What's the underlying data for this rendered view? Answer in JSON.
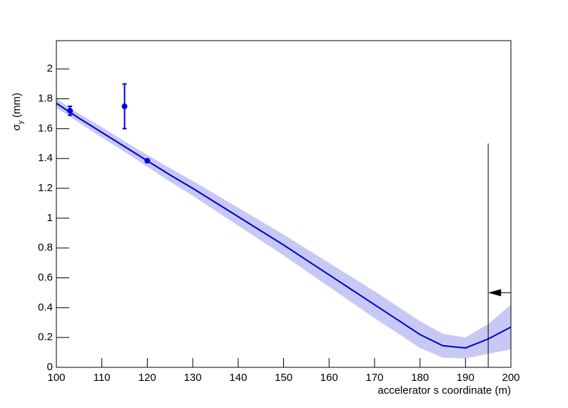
{
  "chart_data": {
    "type": "line",
    "ylabel": "σ",
    "ylabel_sub": "y",
    "ylabel_unit": "(mm)",
    "xlabel": "accelerator s coordinate (m)",
    "xlim": [
      100,
      200
    ],
    "xticks": [
      100,
      110,
      120,
      130,
      140,
      150,
      160,
      170,
      180,
      190,
      200
    ],
    "ylim": [
      0,
      2.19
    ],
    "yticks": [
      0,
      0.2,
      0.4,
      0.6,
      0.8,
      1,
      1.2,
      1.4,
      1.6,
      1.8,
      2
    ],
    "x": [
      100,
      105,
      110,
      115,
      120,
      125,
      130,
      135,
      140,
      145,
      150,
      155,
      160,
      165,
      170,
      175,
      180,
      185,
      190,
      195,
      200
    ],
    "series": [
      {
        "color": "#0000cc",
        "values": [
          1.77,
          1.67,
          1.575,
          1.48,
          1.385,
          1.29,
          1.2,
          1.105,
          1.01,
          0.915,
          0.82,
          0.72,
          0.62,
          0.52,
          0.42,
          0.32,
          0.22,
          0.145,
          0.13,
          0.19,
          0.27
        ]
      }
    ],
    "band": {
      "color": "#c8c8f5",
      "lower": [
        1.74,
        1.64,
        1.54,
        1.445,
        1.345,
        1.245,
        1.15,
        1.05,
        0.95,
        0.85,
        0.75,
        0.645,
        0.54,
        0.435,
        0.33,
        0.23,
        0.13,
        0.065,
        0.06,
        0.09,
        0.12
      ],
      "upper": [
        1.8,
        1.7,
        1.61,
        1.515,
        1.425,
        1.335,
        1.25,
        1.16,
        1.07,
        0.98,
        0.89,
        0.795,
        0.7,
        0.605,
        0.51,
        0.41,
        0.31,
        0.225,
        0.2,
        0.29,
        0.42
      ]
    },
    "points": {
      "color": "#0000dd",
      "x": [
        103,
        115,
        120
      ],
      "values": [
        1.72,
        1.75,
        1.385
      ],
      "errors": [
        0.03,
        0.15,
        0.01
      ]
    },
    "marker_line": {
      "x": 195,
      "y": [
        0,
        1.5
      ]
    },
    "arrow": {
      "y": 0.5,
      "x": [
        200,
        195
      ]
    }
  }
}
